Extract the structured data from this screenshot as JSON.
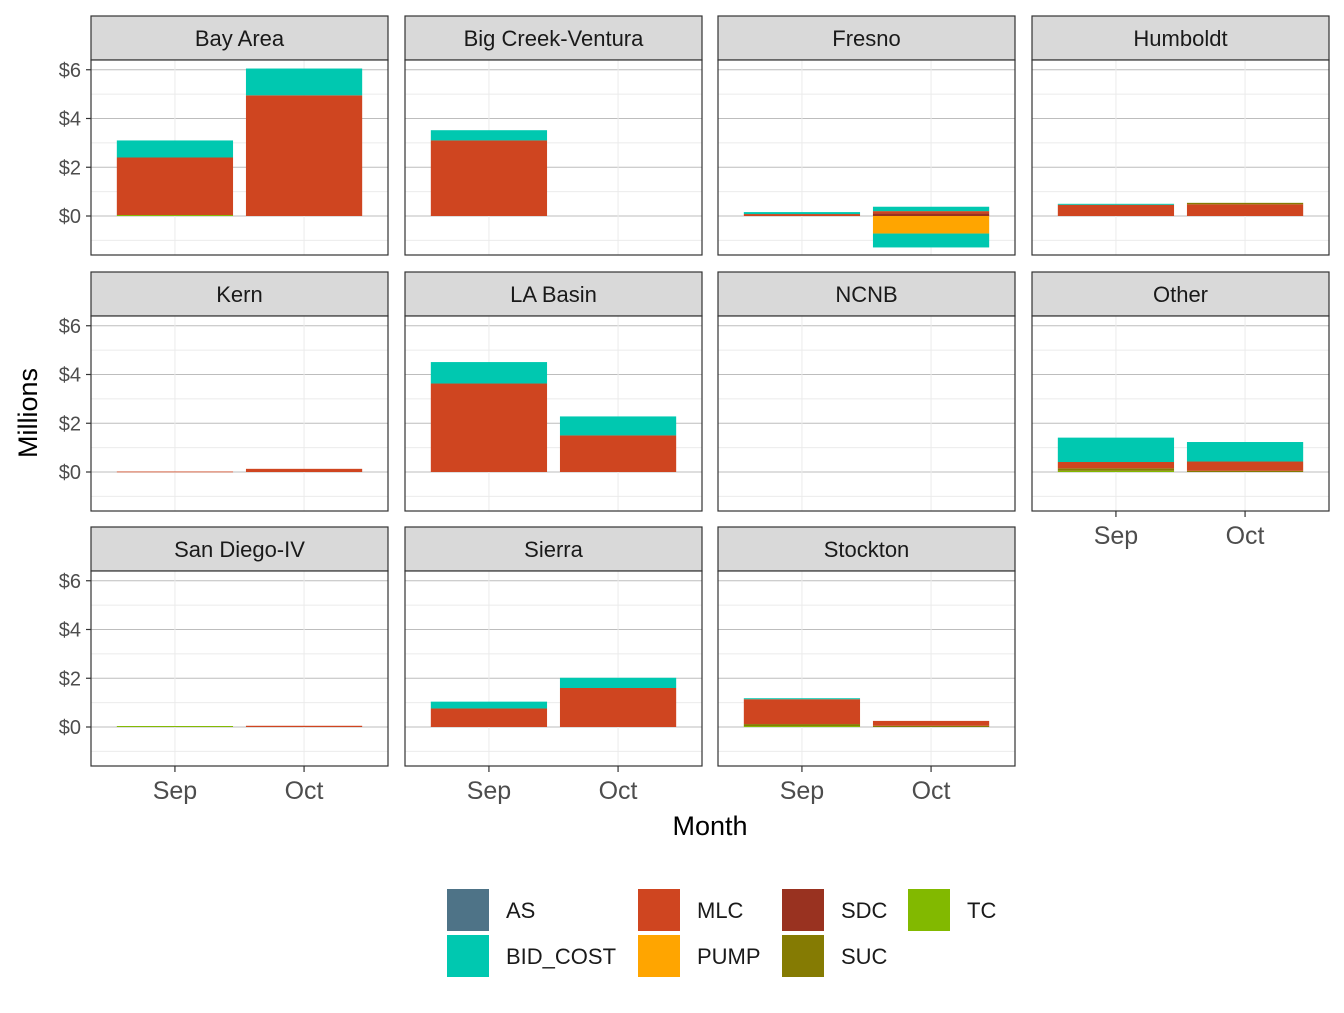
{
  "chart_data": {
    "type": "bar",
    "stacked": true,
    "facet_layout": "4 columns x 3 rows",
    "xlabel": "Month",
    "ylabel": "Millions",
    "categories": [
      "Sep",
      "Oct"
    ],
    "ylim": [
      -1.6,
      6.4
    ],
    "yticks": [
      0,
      2,
      4,
      6
    ],
    "ytick_labels": [
      "$0",
      "$2",
      "$4",
      "$6"
    ],
    "grid": true,
    "legend_position": "bottom",
    "colors": {
      "AS": "#4e7387",
      "BID_COST": "#00c8b0",
      "MLC": "#cf4520",
      "PUMP": "#ffa500",
      "SDC": "#993220",
      "SUC": "#857b03",
      "TC": "#82b900"
    },
    "legend": {
      "items": [
        {
          "key": "AS",
          "label": "AS"
        },
        {
          "key": "BID_COST",
          "label": "BID_COST"
        },
        {
          "key": "MLC",
          "label": "MLC"
        },
        {
          "key": "PUMP",
          "label": "PUMP"
        },
        {
          "key": "SDC",
          "label": "SDC"
        },
        {
          "key": "SUC",
          "label": "SUC"
        },
        {
          "key": "TC",
          "label": "TC"
        }
      ]
    },
    "panels": [
      {
        "name": "Bay Area",
        "bars": {
          "Sep": [
            {
              "series": "TC",
              "value": 0.04
            },
            {
              "series": "MLC",
              "value": 2.36
            },
            {
              "series": "BID_COST",
              "value": 0.7
            }
          ],
          "Oct": [
            {
              "series": "MLC",
              "value": 4.95
            },
            {
              "series": "BID_COST",
              "value": 1.1
            }
          ]
        }
      },
      {
        "name": "Big Creek-Ventura",
        "bars": {
          "Sep": [
            {
              "series": "MLC",
              "value": 3.1
            },
            {
              "series": "BID_COST",
              "value": 0.42
            }
          ],
          "Oct": []
        }
      },
      {
        "name": "Fresno",
        "bars": {
          "Sep": [
            {
              "series": "MLC",
              "value": 0.08
            },
            {
              "series": "BID_COST",
              "value": 0.08
            }
          ],
          "Oct": [
            {
              "series": "SDC",
              "value": 0.1
            },
            {
              "series": "MLC",
              "value": 0.1
            },
            {
              "series": "BID_COST",
              "value": 0.18
            },
            {
              "series": "PUMP",
              "value": -0.72
            },
            {
              "series": "BID_COST",
              "value": -0.57
            }
          ]
        }
      },
      {
        "name": "Humboldt",
        "bars": {
          "Sep": [
            {
              "series": "MLC",
              "value": 0.46
            },
            {
              "series": "BID_COST",
              "value": 0.04
            }
          ],
          "Oct": [
            {
              "series": "MLC",
              "value": 0.48
            },
            {
              "series": "SUC",
              "value": 0.06
            }
          ]
        }
      },
      {
        "name": "Kern",
        "bars": {
          "Sep": [
            {
              "series": "MLC",
              "value": 0.02
            }
          ],
          "Oct": [
            {
              "series": "MLC",
              "value": 0.13
            }
          ]
        }
      },
      {
        "name": "LA Basin",
        "bars": {
          "Sep": [
            {
              "series": "MLC",
              "value": 3.63
            },
            {
              "series": "BID_COST",
              "value": 0.88
            }
          ],
          "Oct": [
            {
              "series": "MLC",
              "value": 1.5
            },
            {
              "series": "BID_COST",
              "value": 0.78
            }
          ]
        }
      },
      {
        "name": "NCNB",
        "bars": {
          "Sep": [],
          "Oct": []
        }
      },
      {
        "name": "Other",
        "bars": {
          "Sep": [
            {
              "series": "TC",
              "value": 0.05
            },
            {
              "series": "SUC",
              "value": 0.1
            },
            {
              "series": "MLC",
              "value": 0.26
            },
            {
              "series": "BID_COST",
              "value": 1.0
            }
          ],
          "Oct": [
            {
              "series": "SUC",
              "value": 0.05
            },
            {
              "series": "MLC",
              "value": 0.38
            },
            {
              "series": "BID_COST",
              "value": 0.8
            }
          ]
        }
      },
      {
        "name": "San Diego-IV",
        "bars": {
          "Sep": [
            {
              "series": "TC",
              "value": 0.04
            }
          ],
          "Oct": [
            {
              "series": "MLC",
              "value": 0.05
            }
          ]
        }
      },
      {
        "name": "Sierra",
        "bars": {
          "Sep": [
            {
              "series": "MLC",
              "value": 0.76
            },
            {
              "series": "BID_COST",
              "value": 0.28
            }
          ],
          "Oct": [
            {
              "series": "MLC",
              "value": 1.6
            },
            {
              "series": "BID_COST",
              "value": 0.42
            }
          ]
        }
      },
      {
        "name": "Stockton",
        "bars": {
          "Sep": [
            {
              "series": "TC",
              "value": 0.04
            },
            {
              "series": "SUC",
              "value": 0.08
            },
            {
              "series": "MLC",
              "value": 1.02
            },
            {
              "series": "BID_COST",
              "value": 0.04
            }
          ],
          "Oct": [
            {
              "series": "SUC",
              "value": 0.05
            },
            {
              "series": "MLC",
              "value": 0.2
            }
          ]
        }
      }
    ]
  }
}
